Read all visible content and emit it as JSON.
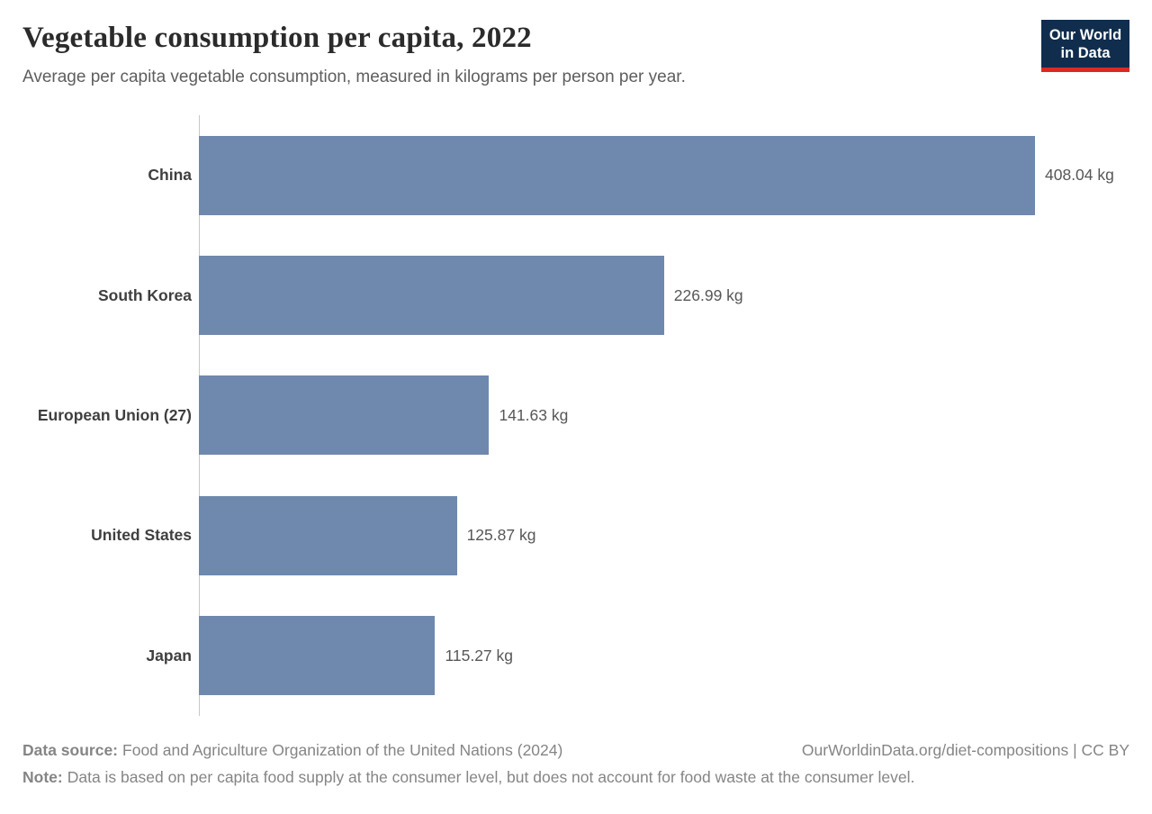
{
  "header": {
    "title": "Vegetable consumption per capita, 2022",
    "subtitle": "Average per capita vegetable consumption, measured in kilograms per person per year.",
    "logo": {
      "line1": "Our World",
      "line2": "in Data"
    }
  },
  "chart_data": {
    "type": "bar",
    "orientation": "horizontal",
    "title": "Vegetable consumption per capita, 2022",
    "xlabel": "",
    "ylabel": "",
    "unit": "kg",
    "categories": [
      "China",
      "South Korea",
      "European Union (27)",
      "United States",
      "Japan"
    ],
    "values": [
      408.04,
      226.99,
      141.63,
      125.87,
      115.27
    ],
    "value_labels": [
      "408.04 kg",
      "226.99 kg",
      "141.63 kg",
      "125.87 kg",
      "115.27 kg"
    ],
    "xlim": [
      0,
      450
    ],
    "grid": false,
    "legend": false,
    "bar_color": "#6f88ad",
    "axis_color": "#c8c8c8"
  },
  "footer": {
    "source_label": "Data source:",
    "source_text": "Food and Agriculture Organization of the United Nations (2024)",
    "link_text": "OurWorldinData.org/diet-compositions | CC BY",
    "note_label": "Note:",
    "note_text": "Data is based on per capita food supply at the consumer level, but does not account for food waste at the consumer level."
  },
  "colors": {
    "accent_bar": "#6f88ad",
    "logo_background": "#102d4e",
    "logo_accent": "#dc2a20"
  }
}
